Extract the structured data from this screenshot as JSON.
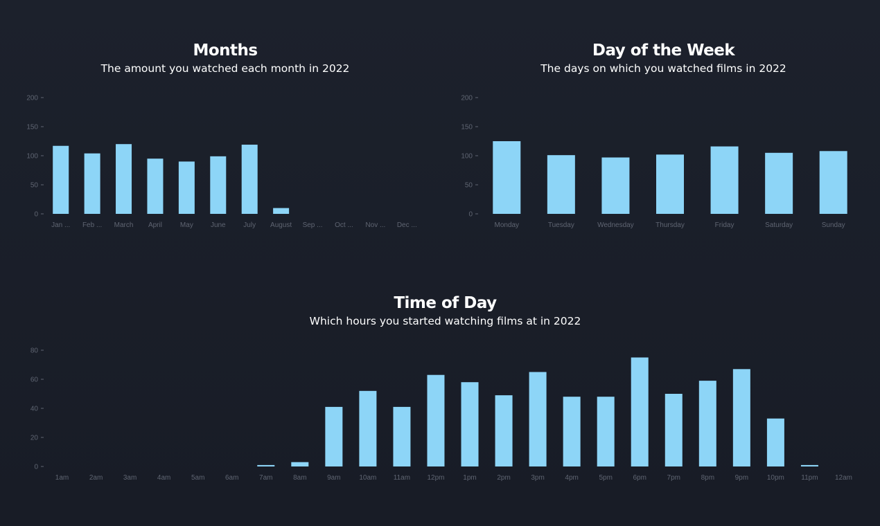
{
  "colors": {
    "bar": "#8dd5f7",
    "tick": "#5f6572",
    "background": "#1a1e28"
  },
  "chart_data": [
    {
      "type": "bar",
      "title": "Months",
      "subtitle": "The amount you watched each month in 2022",
      "categories": [
        "Jan ...",
        "Feb ...",
        "March",
        "April",
        "May",
        "June",
        "July",
        "August",
        "Sep ...",
        "Oct ...",
        "Nov ...",
        "Dec ..."
      ],
      "values": [
        117,
        104,
        120,
        95,
        90,
        99,
        119,
        10,
        0,
        0,
        0,
        0
      ],
      "yticks": [
        0,
        50,
        100,
        150,
        200
      ],
      "ylim": [
        0,
        200
      ],
      "grid": false
    },
    {
      "type": "bar",
      "title": "Day of the Week",
      "subtitle": "The days on which you watched films in 2022",
      "categories": [
        "Monday",
        "Tuesday",
        "Wednesday",
        "Thursday",
        "Friday",
        "Saturday",
        "Sunday"
      ],
      "values": [
        125,
        101,
        97,
        102,
        116,
        105,
        108
      ],
      "yticks": [
        0,
        50,
        100,
        150,
        200
      ],
      "ylim": [
        0,
        200
      ],
      "grid": false
    },
    {
      "type": "bar",
      "title": "Time of Day",
      "subtitle": "Which hours you started watching films at in 2022",
      "categories": [
        "1am",
        "2am",
        "3am",
        "4am",
        "5am",
        "6am",
        "7am",
        "8am",
        "9am",
        "10am",
        "11am",
        "12pm",
        "1pm",
        "2pm",
        "3pm",
        "4pm",
        "5pm",
        "6pm",
        "7pm",
        "8pm",
        "9pm",
        "10pm",
        "11pm",
        "12am"
      ],
      "values": [
        0,
        0,
        0,
        0,
        0,
        0,
        1,
        3,
        41,
        52,
        41,
        63,
        58,
        49,
        65,
        48,
        48,
        75,
        50,
        59,
        67,
        33,
        1,
        0
      ],
      "yticks": [
        0,
        20,
        40,
        60,
        80
      ],
      "ylim": [
        0,
        80
      ],
      "grid": false
    }
  ]
}
